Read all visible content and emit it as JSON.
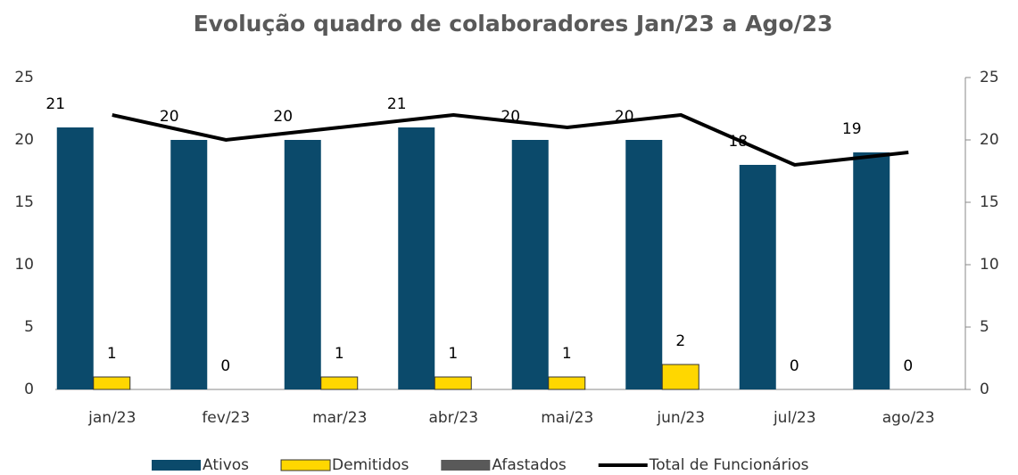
{
  "chart_data": {
    "type": "bar",
    "title": "Evolução quadro de colaboradores Jan/23 a Ago/23",
    "categories": [
      "jan/23",
      "fev/23",
      "mar/23",
      "abr/23",
      "mai/23",
      "jun/23",
      "jul/23",
      "ago/23"
    ],
    "series": [
      {
        "name": "Ativos",
        "color": "#0b4a6b",
        "values": [
          21,
          20,
          20,
          21,
          20,
          20,
          18,
          19
        ]
      },
      {
        "name": "Demitidos",
        "color": "#ffd700",
        "values": [
          1,
          0,
          1,
          1,
          1,
          2,
          0,
          0
        ]
      },
      {
        "name": "Afastados",
        "color": "#595959",
        "values": [
          0,
          0,
          0,
          0,
          0,
          0,
          0,
          0
        ]
      },
      {
        "name": "Total de Funcionários",
        "color": "#000000",
        "type": "line",
        "axis": "y2",
        "values": [
          22,
          20,
          21,
          22,
          21,
          22,
          18,
          19
        ]
      }
    ],
    "ylim": [
      0,
      25
    ],
    "yticks": [
      0,
      5,
      10,
      15,
      20,
      25
    ],
    "y2lim": [
      0,
      25
    ],
    "y2ticks": [
      0,
      5,
      10,
      15,
      20,
      25
    ],
    "legend": "bottom",
    "grid": false
  }
}
